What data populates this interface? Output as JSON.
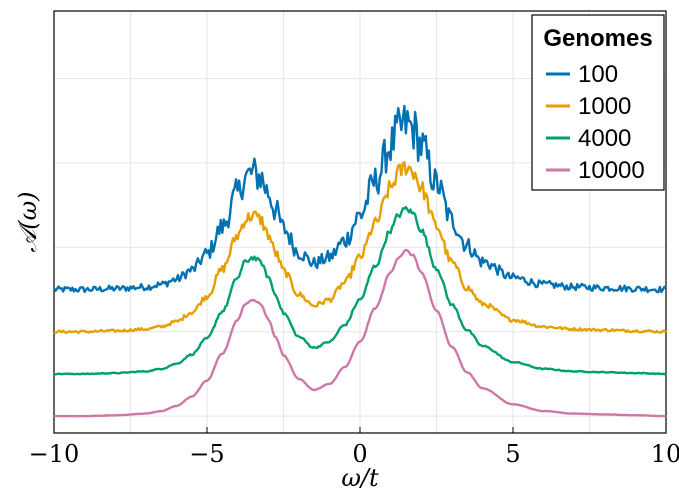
{
  "chart_data": {
    "type": "line",
    "xlabel": "ω/t",
    "ylabel": "𝒜(ω)",
    "xlim": [
      -10,
      10
    ],
    "xticks": [
      -10,
      -5,
      0,
      5,
      10
    ],
    "xtick_labels": [
      "−10",
      "−5",
      "0",
      "5",
      "10"
    ],
    "ylim": [
      -0.2,
      4.8
    ],
    "grid": true,
    "yticks_shown": false,
    "legend": {
      "title": "Genomes",
      "position": "top-right",
      "entries": [
        "100",
        "1000",
        "4000",
        "10000"
      ]
    },
    "x": [
      -10,
      -9,
      -8,
      -7,
      -6.5,
      -6,
      -5.5,
      -5,
      -4.5,
      -4,
      -3.75,
      -3.5,
      -3.25,
      -3,
      -2.75,
      -2.5,
      -2,
      -1.5,
      -1,
      -0.5,
      0,
      0.5,
      1,
      1.25,
      1.5,
      1.75,
      2,
      2.5,
      3,
      3.5,
      4,
      5,
      6,
      7,
      8,
      9,
      10
    ],
    "series": [
      {
        "name": "100",
        "color": "#0072B2",
        "offset": 1.5,
        "noise": 0.09,
        "values": [
          0.0,
          0.0,
          0.01,
          0.03,
          0.06,
          0.12,
          0.23,
          0.42,
          0.74,
          1.14,
          1.33,
          1.38,
          1.33,
          1.15,
          0.93,
          0.72,
          0.44,
          0.31,
          0.38,
          0.58,
          0.88,
          1.28,
          1.7,
          1.88,
          1.96,
          1.9,
          1.7,
          1.25,
          0.82,
          0.52,
          0.33,
          0.14,
          0.06,
          0.03,
          0.02,
          0.01,
          0.0
        ]
      },
      {
        "name": "1000",
        "color": "#E69F00",
        "offset": 1.0,
        "noise": 0.035,
        "values": [
          0.0,
          0.0,
          0.01,
          0.03,
          0.06,
          0.12,
          0.23,
          0.42,
          0.74,
          1.14,
          1.33,
          1.38,
          1.33,
          1.15,
          0.93,
          0.72,
          0.44,
          0.31,
          0.38,
          0.58,
          0.88,
          1.28,
          1.7,
          1.88,
          1.96,
          1.9,
          1.7,
          1.25,
          0.82,
          0.52,
          0.33,
          0.14,
          0.06,
          0.03,
          0.02,
          0.01,
          0.0
        ]
      },
      {
        "name": "4000",
        "color": "#009E73",
        "offset": 0.5,
        "noise": 0.012,
        "values": [
          0.0,
          0.0,
          0.01,
          0.03,
          0.06,
          0.12,
          0.23,
          0.42,
          0.74,
          1.14,
          1.33,
          1.38,
          1.33,
          1.15,
          0.93,
          0.72,
          0.44,
          0.31,
          0.38,
          0.58,
          0.88,
          1.28,
          1.7,
          1.88,
          1.96,
          1.9,
          1.7,
          1.25,
          0.82,
          0.52,
          0.33,
          0.14,
          0.06,
          0.03,
          0.02,
          0.01,
          0.0
        ]
      },
      {
        "name": "10000",
        "color": "#CC79A7",
        "offset": 0.0,
        "noise": 0.004,
        "values": [
          0.0,
          0.0,
          0.01,
          0.03,
          0.06,
          0.12,
          0.23,
          0.42,
          0.74,
          1.14,
          1.33,
          1.38,
          1.33,
          1.15,
          0.93,
          0.72,
          0.44,
          0.31,
          0.38,
          0.58,
          0.88,
          1.28,
          1.7,
          1.88,
          1.96,
          1.9,
          1.7,
          1.25,
          0.82,
          0.52,
          0.33,
          0.14,
          0.06,
          0.03,
          0.02,
          0.01,
          0.0
        ]
      }
    ]
  }
}
